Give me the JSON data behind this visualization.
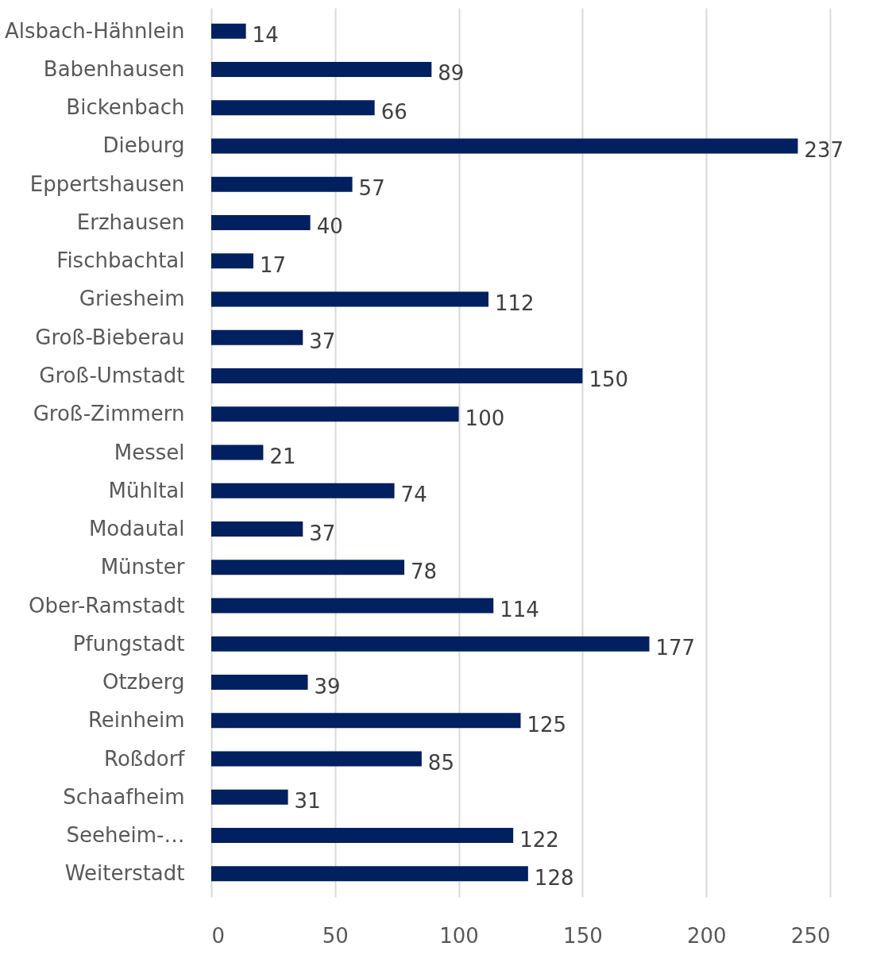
{
  "chart_data": {
    "type": "bar",
    "orientation": "horizontal",
    "categories": [
      "Alsbach-Hähnlein",
      "Babenhausen",
      "Bickenbach",
      "Dieburg",
      "Eppertshausen",
      "Erzhausen",
      "Fischbachtal",
      "Griesheim",
      "Groß-Bieberau",
      "Groß-Umstadt",
      "Groß-Zimmern",
      "Messel",
      "Mühltal",
      "Modautal",
      "Münster",
      "Ober-Ramstadt",
      "Pfungstadt",
      "Otzberg",
      "Reinheim",
      "Roßdorf",
      "Schaafheim",
      "Seeheim-…",
      "Weiterstadt"
    ],
    "values": [
      14,
      89,
      66,
      237,
      57,
      40,
      17,
      112,
      37,
      150,
      100,
      21,
      74,
      37,
      78,
      114,
      177,
      39,
      125,
      85,
      31,
      122,
      128
    ],
    "color": "#002060",
    "xlim": [
      0,
      250
    ],
    "xticks": [
      0,
      50,
      100,
      150,
      200,
      250
    ],
    "grid": "x",
    "data_labels": true
  }
}
